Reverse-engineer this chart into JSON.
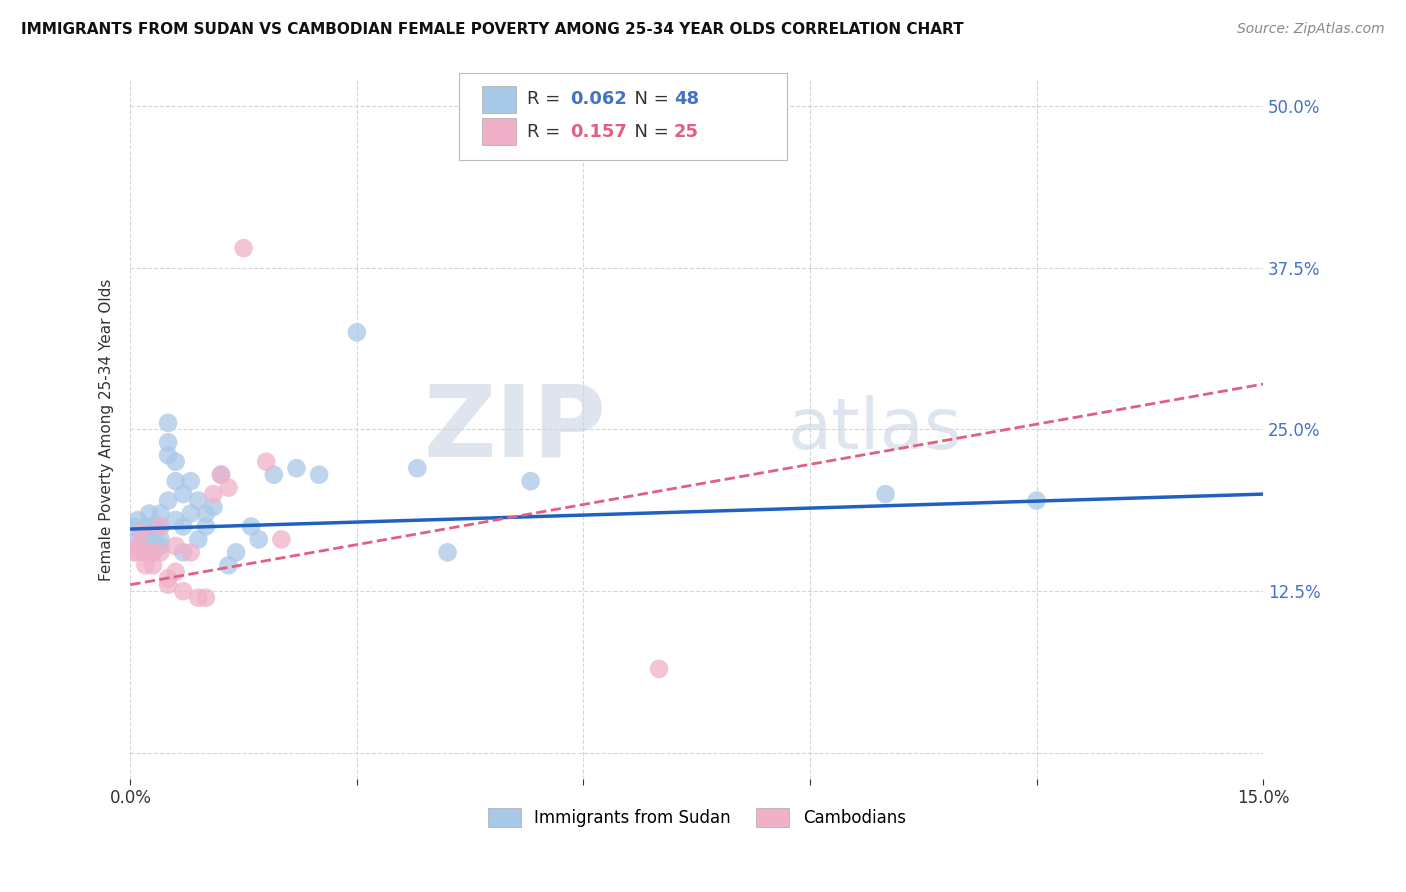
{
  "title": "IMMIGRANTS FROM SUDAN VS CAMBODIAN FEMALE POVERTY AMONG 25-34 YEAR OLDS CORRELATION CHART",
  "source": "Source: ZipAtlas.com",
  "ylabel": "Female Poverty Among 25-34 Year Olds",
  "xlim": [
    0,
    0.15
  ],
  "ylim": [
    -0.02,
    0.52
  ],
  "plot_ylim": [
    0.0,
    0.5
  ],
  "xticks": [
    0.0,
    0.03,
    0.06,
    0.09,
    0.12,
    0.15
  ],
  "xticklabels": [
    "0.0%",
    "",
    "",
    "",
    "",
    "15.0%"
  ],
  "yticks": [
    0.0,
    0.125,
    0.25,
    0.375,
    0.5
  ],
  "yticklabels": [
    "",
    "12.5%",
    "25.0%",
    "37.5%",
    "50.0%"
  ],
  "blue_R": "0.062",
  "blue_N": "48",
  "pink_R": "0.157",
  "pink_N": "25",
  "blue_color": "#a8c8e8",
  "pink_color": "#f0b0c8",
  "blue_line_color": "#2060c0",
  "pink_line_color": "#e06080",
  "legend_blue_label": "Immigrants from Sudan",
  "legend_pink_label": "Cambodians",
  "watermark_zip": "ZIP",
  "watermark_atlas": "atlas",
  "background_color": "#ffffff",
  "grid_color": "#cccccc",
  "blue_x": [
    0.0005,
    0.001,
    0.001,
    0.0015,
    0.002,
    0.002,
    0.002,
    0.0025,
    0.003,
    0.003,
    0.003,
    0.003,
    0.0035,
    0.004,
    0.004,
    0.004,
    0.004,
    0.005,
    0.005,
    0.005,
    0.005,
    0.006,
    0.006,
    0.006,
    0.007,
    0.007,
    0.007,
    0.008,
    0.008,
    0.009,
    0.009,
    0.01,
    0.01,
    0.011,
    0.012,
    0.013,
    0.014,
    0.016,
    0.017,
    0.019,
    0.022,
    0.025,
    0.03,
    0.038,
    0.042,
    0.053,
    0.1,
    0.12
  ],
  "blue_y": [
    0.175,
    0.18,
    0.165,
    0.17,
    0.175,
    0.165,
    0.155,
    0.185,
    0.175,
    0.165,
    0.155,
    0.175,
    0.175,
    0.185,
    0.175,
    0.16,
    0.165,
    0.24,
    0.23,
    0.255,
    0.195,
    0.225,
    0.21,
    0.18,
    0.2,
    0.175,
    0.155,
    0.21,
    0.185,
    0.195,
    0.165,
    0.185,
    0.175,
    0.19,
    0.215,
    0.145,
    0.155,
    0.175,
    0.165,
    0.215,
    0.22,
    0.215,
    0.325,
    0.22,
    0.155,
    0.21,
    0.2,
    0.195
  ],
  "pink_x": [
    0.0005,
    0.001,
    0.001,
    0.0015,
    0.002,
    0.002,
    0.003,
    0.003,
    0.004,
    0.004,
    0.005,
    0.005,
    0.006,
    0.006,
    0.007,
    0.008,
    0.009,
    0.01,
    0.011,
    0.012,
    0.013,
    0.015,
    0.018,
    0.02,
    0.07
  ],
  "pink_y": [
    0.155,
    0.16,
    0.155,
    0.17,
    0.155,
    0.145,
    0.155,
    0.145,
    0.175,
    0.155,
    0.135,
    0.13,
    0.16,
    0.14,
    0.125,
    0.155,
    0.12,
    0.12,
    0.2,
    0.215,
    0.205,
    0.39,
    0.225,
    0.165,
    0.065
  ],
  "blue_trend_x0": 0.0,
  "blue_trend_x1": 0.15,
  "blue_trend_y0": 0.173,
  "blue_trend_y1": 0.2,
  "pink_trend_x0": 0.0,
  "pink_trend_x1": 0.15,
  "pink_trend_y0": 0.13,
  "pink_trend_y1": 0.285
}
